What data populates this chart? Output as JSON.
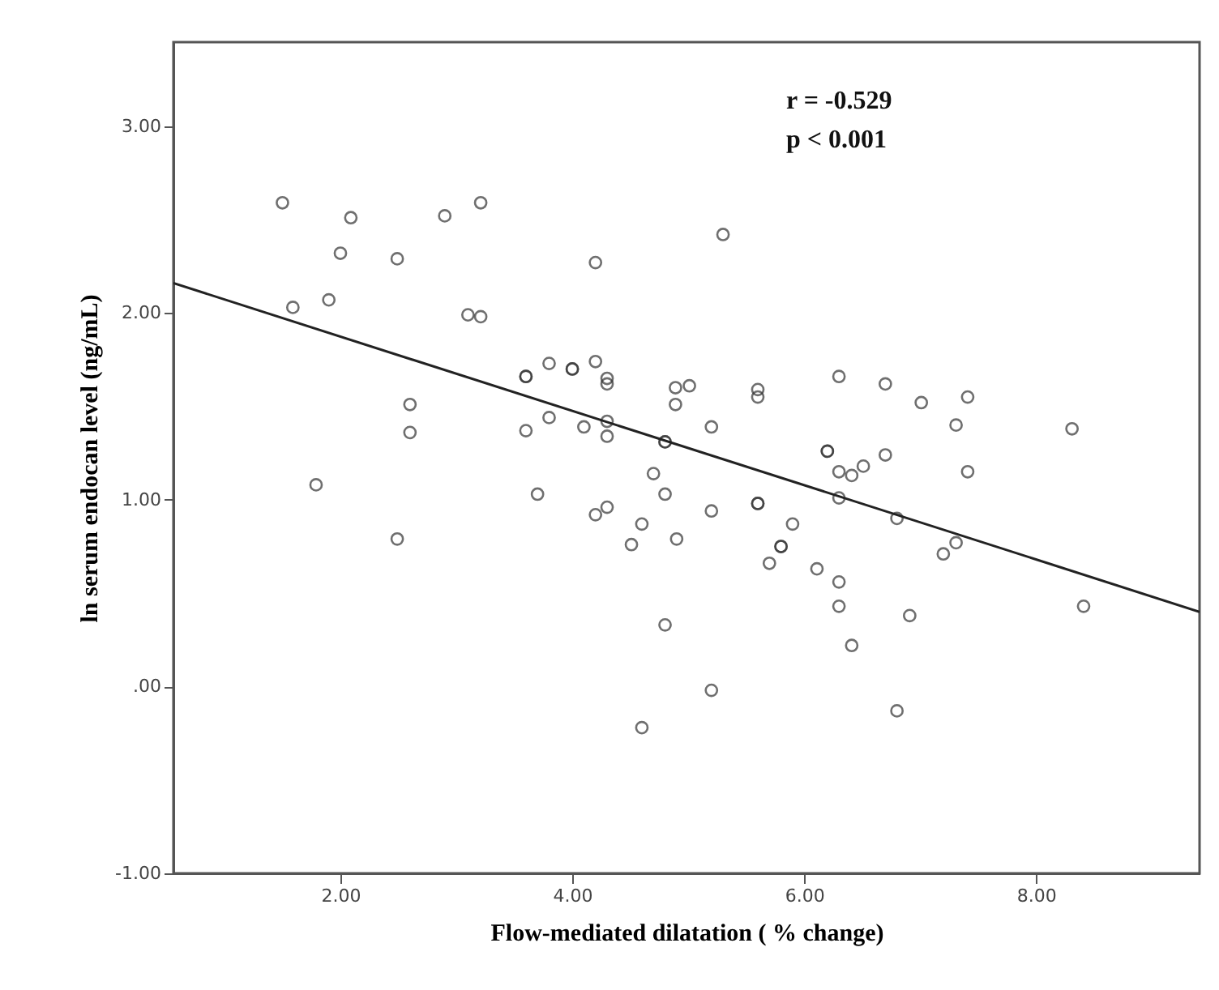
{
  "chart_data": {
    "type": "scatter",
    "xlabel": "Flow-mediated dilatation ( % change)",
    "ylabel": "ln serum endocan level (ng/mL)",
    "annotations": [
      "r = -0.529",
      "p < 0.001"
    ],
    "xlim": [
      0.56,
      9.41
    ],
    "ylim": [
      -1.0,
      3.45
    ],
    "xticks": [
      {
        "value": 2,
        "label": "2.00"
      },
      {
        "value": 4,
        "label": "4.00"
      },
      {
        "value": 6,
        "label": "6.00"
      },
      {
        "value": 8,
        "label": "8.00"
      }
    ],
    "yticks": [
      {
        "value": -1,
        "label": "-1.00"
      },
      {
        "value": 0,
        "label": ".00"
      },
      {
        "value": 1,
        "label": "1.00"
      },
      {
        "value": 2,
        "label": "2.00"
      },
      {
        "value": 3,
        "label": "3.00"
      }
    ],
    "grid": false,
    "series": [
      {
        "color": "#333333",
        "marker": "circle",
        "x": [
          1.5,
          2.09,
          2.0,
          2.49,
          2.9,
          3.21,
          1.9,
          1.59,
          3.1,
          3.21,
          4.2,
          3.6,
          3.6,
          3.8,
          4.0,
          4.0,
          4.2,
          4.3,
          4.3,
          4.89,
          4.89,
          2.6,
          2.6,
          3.6,
          3.8,
          4.1,
          4.3,
          4.3,
          4.8,
          4.8,
          4.7,
          5.3,
          5.01,
          5.6,
          5.6,
          5.2,
          6.3,
          6.7,
          7.01,
          7.41,
          7.31,
          8.31,
          6.2,
          6.2,
          6.3,
          6.41,
          6.51,
          6.7,
          7.41,
          1.79,
          2.49,
          3.7,
          4.2,
          4.3,
          4.6,
          4.51,
          4.8,
          4.9,
          4.8,
          4.6,
          5.2,
          5.6,
          5.6,
          5.9,
          5.8,
          5.8,
          5.7,
          6.11,
          6.3,
          6.3,
          6.41,
          6.3,
          6.8,
          7.31,
          7.2,
          6.91,
          8.41,
          5.2,
          6.8
        ],
        "values": [
          2.59,
          2.51,
          2.32,
          2.29,
          2.52,
          2.59,
          2.07,
          2.03,
          1.99,
          1.98,
          2.27,
          1.66,
          1.66,
          1.73,
          1.7,
          1.7,
          1.74,
          1.65,
          1.62,
          1.6,
          1.51,
          1.51,
          1.36,
          1.37,
          1.44,
          1.39,
          1.42,
          1.34,
          1.31,
          1.31,
          1.14,
          2.42,
          1.61,
          1.59,
          1.55,
          1.39,
          1.66,
          1.62,
          1.52,
          1.55,
          1.4,
          1.38,
          1.26,
          1.26,
          1.15,
          1.13,
          1.18,
          1.24,
          1.15,
          1.08,
          0.79,
          1.03,
          0.92,
          0.96,
          0.87,
          0.76,
          1.03,
          0.79,
          0.33,
          -0.22,
          0.94,
          0.98,
          0.98,
          0.87,
          0.75,
          0.75,
          0.66,
          0.63,
          0.56,
          0.43,
          0.22,
          1.01,
          0.9,
          0.77,
          0.71,
          0.38,
          0.43,
          -0.02,
          -0.13
        ]
      },
      {
        "type": "line",
        "color": "#222222",
        "line_style": "solid",
        "x": [
          0.56,
          9.41
        ],
        "values": [
          2.16,
          0.4
        ]
      }
    ]
  }
}
